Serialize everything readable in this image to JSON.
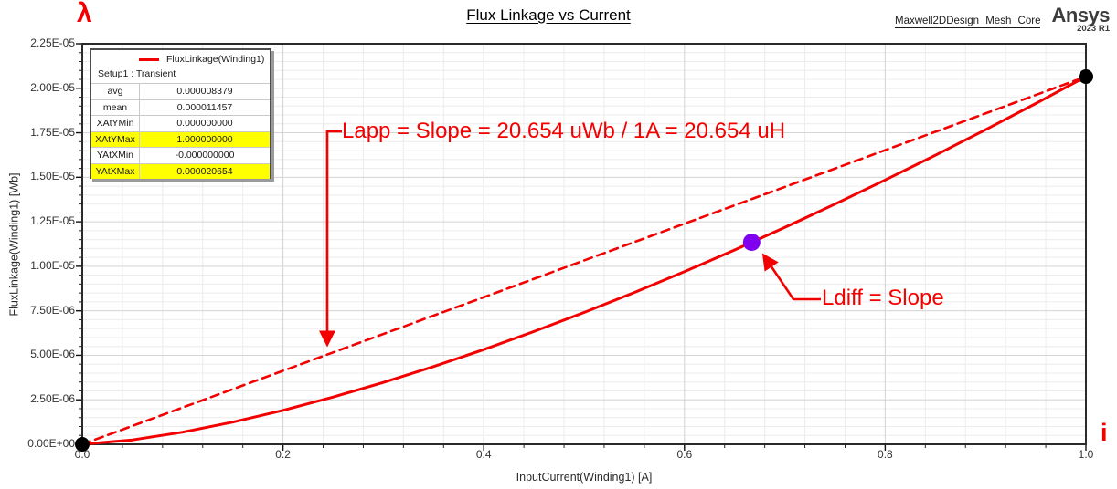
{
  "header": {
    "title": "Flux Linkage vs Current",
    "watermark": "Maxwell2DDesign  Mesh  Core",
    "logo": {
      "brand": "Ansys",
      "release": "2023 R1"
    }
  },
  "legend": {
    "series": "FluxLinkage(Winding1)",
    "setup": "Setup1 : Transient"
  },
  "stats": {
    "rows": [
      {
        "label": "avg",
        "value": "0.000008379",
        "highlight": false
      },
      {
        "label": "mean",
        "value": "0.000011457",
        "highlight": false
      },
      {
        "label": "XAtYMin",
        "value": "0.000000000",
        "highlight": false
      },
      {
        "label": "XAtYMax",
        "value": "1.000000000",
        "highlight": true
      },
      {
        "label": "YAtXMin",
        "value": "-0.000000000",
        "highlight": false
      },
      {
        "label": "YAtXMax",
        "value": "0.000020654",
        "highlight": true
      }
    ]
  },
  "annotations": {
    "lambda_symbol": "λ",
    "current_symbol": "i",
    "lapp": {
      "text": "Lapp = Slope = 20.654 uWb / 1A = 20.654 uH"
    },
    "ldiff": {
      "text": "Ldiff = Slope"
    }
  },
  "colors": {
    "accent_red": "#f30000",
    "marker_black": "#000000",
    "marker_purple": "#8000f0",
    "highlight_yellow": "#ffff00",
    "grid_minor": "#ececec",
    "grid_major": "#d6d6d6",
    "frame": "#2a2a2a",
    "text": "#333333"
  },
  "chart_data": {
    "type": "line",
    "title": "Flux Linkage vs Current",
    "xlabel": "InputCurrent(Winding1) [A]",
    "ylabel": "FluxLinkage(Winding1) [Wb]",
    "xlim": [
      0,
      1.0
    ],
    "ylim": [
      0,
      2.25e-05
    ],
    "x_tick_values": [
      0,
      0.2,
      0.4,
      0.6,
      0.8,
      1.0
    ],
    "x_tick_labels": [
      "0.0",
      "0.2",
      "0.4",
      "0.6",
      "0.8",
      "1.0"
    ],
    "y_tick_values": [
      0,
      2.5e-06,
      5e-06,
      7.5e-06,
      1e-05,
      1.25e-05,
      1.5e-05,
      1.75e-05,
      2e-05,
      2.25e-05
    ],
    "y_tick_labels": [
      "0.00E+00",
      "2.50E-06",
      "5.00E-06",
      "7.50E-06",
      "1.00E-05",
      "1.25E-05",
      "1.50E-05",
      "1.75E-05",
      "2.00E-05",
      "2.25E-05"
    ],
    "x_minor_step": 0.04,
    "y_minor_step": 5e-07,
    "grid": true,
    "legend_position": "top-left",
    "series": [
      {
        "name": "FluxLinkage(Winding1)",
        "style": "solid",
        "points": [
          [
            0,
            0
          ],
          [
            0.05,
            2.45e-07
          ],
          [
            0.1,
            6.84e-07
          ],
          [
            0.15,
            1.246e-06
          ],
          [
            0.2,
            1.908e-06
          ],
          [
            0.25,
            2.654e-06
          ],
          [
            0.3,
            3.476e-06
          ],
          [
            0.35,
            4.368e-06
          ],
          [
            0.4,
            5.322e-06
          ],
          [
            0.45,
            6.335e-06
          ],
          [
            0.5,
            7.404e-06
          ],
          [
            0.55,
            8.528e-06
          ],
          [
            0.6,
            9.697e-06
          ],
          [
            0.65,
            1.0918e-05
          ],
          [
            0.667,
            1.1352e-05
          ],
          [
            0.7,
            1.2184e-05
          ],
          [
            0.75,
            1.3493e-05
          ],
          [
            0.8,
            1.4846e-05
          ],
          [
            0.85,
            1.6238e-05
          ],
          [
            0.9,
            1.7671e-05
          ],
          [
            0.95,
            1.9144e-05
          ],
          [
            1.0,
            2.0654e-05
          ]
        ]
      },
      {
        "name": "Lapp apparent inductance secant",
        "style": "dashed",
        "points": [
          [
            0,
            0
          ],
          [
            1.0,
            2.0654e-05
          ]
        ]
      }
    ],
    "markers": [
      {
        "name": "origin-point",
        "x": 0,
        "y": 0,
        "color": "#000000",
        "r": 8
      },
      {
        "name": "max-point",
        "x": 1.0,
        "y": 2.0654e-05,
        "color": "#000000",
        "r": 8
      },
      {
        "name": "ldiff-point",
        "x": 0.667,
        "y": 1.1352e-05,
        "color": "#8000f0",
        "r": 9.5
      }
    ]
  }
}
